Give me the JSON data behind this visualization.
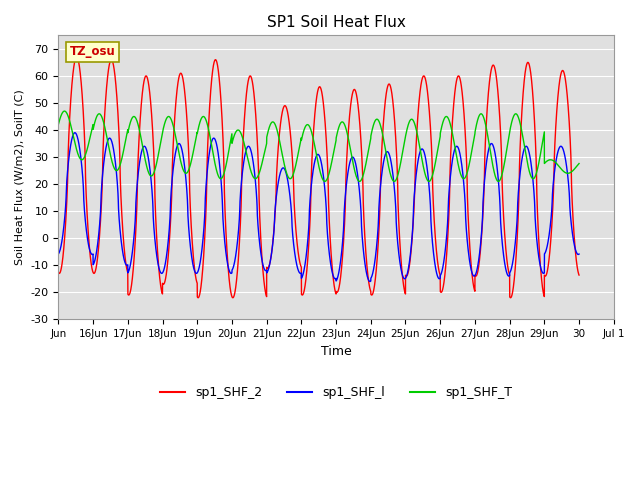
{
  "title": "SP1 Soil Heat Flux",
  "xlabel": "Time",
  "ylabel": "Soil Heat Flux (W/m2), SoilT (C)",
  "ylim": [
    -30,
    75
  ],
  "yticks": [
    -30,
    -20,
    -10,
    0,
    10,
    20,
    30,
    40,
    50,
    60,
    70
  ],
  "bg_color": "#e0e0e0",
  "fig_color": "#ffffff",
  "grid_color": "#ffffff",
  "legend_labels": [
    "sp1_SHF_2",
    "sp1_SHF_l",
    "sp1_SHF_T"
  ],
  "legend_colors": [
    "#ff0000",
    "#0000ff",
    "#00cc00"
  ],
  "tz_label": "TZ_osu",
  "tz_box_facecolor": "#ffffcc",
  "tz_box_edgecolor": "#999900",
  "tz_text_color": "#cc0000",
  "xtick_labels": [
    "Jun",
    "16Jun",
    "17Jun",
    "18Jun",
    "19Jun",
    "20Jun",
    "21Jun",
    "22Jun",
    "23Jun",
    "24Jun",
    "25Jun",
    "26Jun",
    "27Jun",
    "28Jun",
    "29Jun",
    "30",
    "Jul 1"
  ],
  "num_cycles": 15,
  "shf2_peak_heights": [
    67,
    66,
    60,
    61,
    66,
    60,
    49,
    56,
    55,
    57,
    60,
    60,
    64,
    65,
    62
  ],
  "shf2_trough_depths": [
    -13,
    -13,
    -21,
    -17,
    -22,
    -22,
    -11,
    -21,
    -20,
    -21,
    -14,
    -20,
    -14,
    -22,
    -14
  ],
  "shfl_peak_heights": [
    39,
    37,
    34,
    35,
    37,
    34,
    26,
    31,
    30,
    32,
    33,
    34,
    35,
    34,
    34
  ],
  "shfl_trough_depths": [
    -6,
    -10,
    -13,
    -13,
    -13,
    -12,
    -13,
    -15,
    -16,
    -15,
    -15,
    -14,
    -14,
    -13,
    -6
  ],
  "shft_peak_heights": [
    47,
    46,
    45,
    45,
    45,
    40,
    43,
    42,
    43,
    44,
    44,
    45,
    46,
    46,
    29
  ],
  "shft_trough_depths": [
    29,
    25,
    23,
    24,
    22,
    22,
    22,
    21,
    21,
    21,
    21,
    22,
    21,
    22,
    24
  ]
}
